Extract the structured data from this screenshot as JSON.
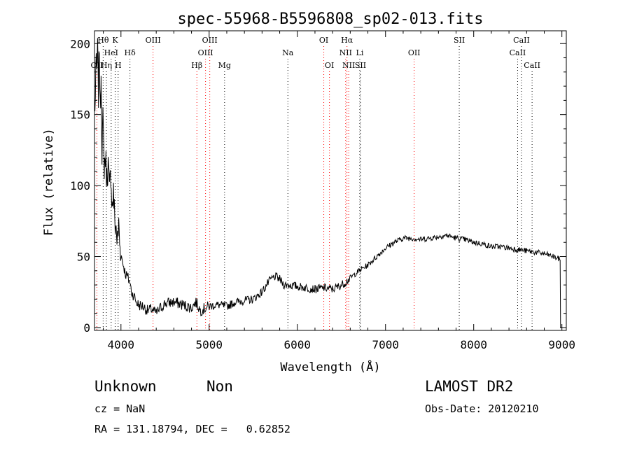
{
  "chart_data": {
    "type": "line",
    "title": "spec-55968-B5596808_sp02-013.fits",
    "xlabel": "Wavelength (Å)",
    "ylabel": "Flux (relative)",
    "xlim": [
      3700,
      9050
    ],
    "ylim": [
      -2,
      209
    ],
    "xticks": [
      {
        "value": 4000,
        "label": "4000"
      },
      {
        "value": 5000,
        "label": "5000"
      },
      {
        "value": 6000,
        "label": "6000"
      },
      {
        "value": 7000,
        "label": "7000"
      },
      {
        "value": 8000,
        "label": "8000"
      },
      {
        "value": 9000,
        "label": "9000"
      }
    ],
    "yticks": [
      {
        "value": 0,
        "label": "0"
      },
      {
        "value": 50,
        "label": "50"
      },
      {
        "value": 100,
        "label": "100"
      },
      {
        "value": 150,
        "label": "150"
      },
      {
        "value": 200,
        "label": "200"
      }
    ],
    "lines": [
      {
        "name": "Hθ",
        "wavelength": 3798,
        "row": 0,
        "color": "#000000"
      },
      {
        "name": "K",
        "wavelength": 3934,
        "row": 0,
        "color": "#000000"
      },
      {
        "name": "OIII",
        "wavelength": 4364,
        "row": 0,
        "color": "#ff0000"
      },
      {
        "name": "OIII",
        "wavelength": 5007,
        "row": 0,
        "color": "#ff0000"
      },
      {
        "name": "OI",
        "wavelength": 6300,
        "row": 0,
        "color": "#ff0000"
      },
      {
        "name": "Hα",
        "wavelength": 6563,
        "row": 0,
        "color": "#ff0000"
      },
      {
        "name": "SII",
        "wavelength": 7836,
        "row": 0,
        "color": "#000000"
      },
      {
        "name": "CaII",
        "wavelength": 8542,
        "row": 0,
        "color": "#000000"
      },
      {
        "name": "HeI",
        "wavelength": 3889,
        "row": 1,
        "color": "#000000"
      },
      {
        "name": "Hδ",
        "wavelength": 4102,
        "row": 1,
        "color": "#000000"
      },
      {
        "name": "OIII",
        "wavelength": 4959,
        "row": 1,
        "color": "#ff0000"
      },
      {
        "name": "Na",
        "wavelength": 5893,
        "row": 1,
        "color": "#000000"
      },
      {
        "name": "NII",
        "wavelength": 6548,
        "row": 1,
        "color": "#ff0000"
      },
      {
        "name": "Li",
        "wavelength": 6708,
        "row": 1,
        "color": "#000000"
      },
      {
        "name": "OII",
        "wavelength": 7325,
        "row": 1,
        "color": "#ff0000"
      },
      {
        "name": "CaII",
        "wavelength": 8498,
        "row": 1,
        "color": "#000000"
      },
      {
        "name": "OII",
        "wavelength": 3727,
        "row": 2,
        "color": "#ff0000"
      },
      {
        "name": "Hη",
        "wavelength": 3835,
        "row": 2,
        "color": "#000000"
      },
      {
        "name": "H",
        "wavelength": 3968,
        "row": 2,
        "color": "#000000"
      },
      {
        "name": "Hβ",
        "wavelength": 4861,
        "row": 2,
        "color": "#ff0000"
      },
      {
        "name": "Mg",
        "wavelength": 5175,
        "row": 2,
        "color": "#000000"
      },
      {
        "name": "OI",
        "wavelength": 6364,
        "row": 2,
        "color": "#ff0000"
      },
      {
        "name": "NII",
        "wavelength": 6583,
        "row": 2,
        "color": "#ff0000"
      },
      {
        "name": "SII",
        "wavelength": 6716,
        "row": 2,
        "color": "#000000"
      },
      {
        "name": "CaII",
        "wavelength": 8662,
        "row": 2,
        "color": "#000000"
      }
    ],
    "series": [
      {
        "x": [
          3705,
          3715,
          3725,
          3735,
          3745,
          3755,
          3765,
          3775,
          3785,
          3795,
          3810,
          3825,
          3840,
          3855,
          3870,
          3885,
          3900,
          3915,
          3930,
          3945,
          3960,
          3975,
          3990,
          4005,
          4025,
          4050,
          4080,
          4100,
          4120,
          4150,
          4175,
          4200,
          4250,
          4300,
          4350,
          4400,
          4450,
          4500,
          4600,
          4700,
          4800,
          4850,
          4900,
          5000,
          5100,
          5200,
          5300,
          5400,
          5500,
          5600,
          5650,
          5700,
          5750,
          5800,
          5850,
          5900,
          6000,
          6100,
          6200,
          6300,
          6400,
          6500,
          6550,
          6600,
          6700,
          6800,
          6900,
          7000,
          7100,
          7200,
          7300,
          7400,
          7500,
          7600,
          7700,
          7800,
          7900,
          8000,
          8100,
          8200,
          8300,
          8400,
          8500,
          8600,
          8700,
          8800,
          8900,
          8980,
          8985,
          8990,
          9000
        ],
        "y": [
          150,
          185,
          178,
          195,
          165,
          200,
          150,
          180,
          125,
          145,
          115,
          120,
          105,
          115,
          95,
          110,
          85,
          95,
          75,
          70,
          60,
          72,
          55,
          50,
          45,
          38,
          35,
          32,
          25,
          22,
          18,
          16,
          15,
          12,
          13,
          10,
          14,
          17,
          18,
          16,
          14,
          18,
          12,
          15,
          16,
          15,
          18,
          19,
          20,
          25,
          30,
          34,
          36,
          34,
          30,
          30,
          29,
          28,
          27,
          28,
          27,
          30,
          32,
          35,
          40,
          44,
          50,
          56,
          60,
          63,
          63,
          62,
          63,
          64,
          65,
          63,
          62,
          60,
          59,
          57,
          57,
          56,
          55,
          54,
          53,
          52,
          50,
          48,
          0,
          0,
          0
        ]
      }
    ],
    "footer": {
      "object_class": "Unknown",
      "subclass": "Non",
      "cz": "cz = NaN",
      "coords": "RA = 131.18794, DEC =   0.62852",
      "survey": "LAMOST DR2",
      "obs_date": "Obs-Date: 20120210"
    }
  }
}
